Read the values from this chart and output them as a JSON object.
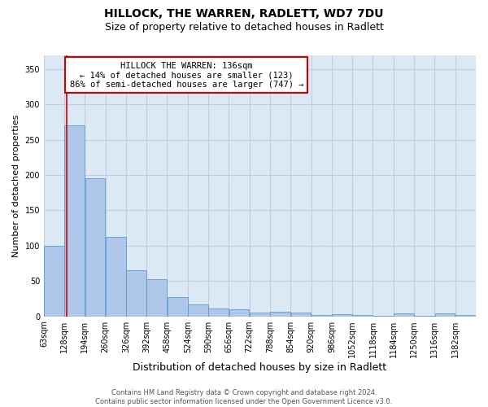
{
  "title": "HILLOCK, THE WARREN, RADLETT, WD7 7DU",
  "subtitle": "Size of property relative to detached houses in Radlett",
  "xlabel": "Distribution of detached houses by size in Radlett",
  "ylabel": "Number of detached properties",
  "bar_color": "#aec6e8",
  "bar_edge_color": "#5b9bd5",
  "background_color": "#ffffff",
  "plot_bg_color": "#dde8f5",
  "grid_color": "#c0cfe0",
  "annotation_box_color": "#cc0000",
  "annotation_text": "HILLOCK THE WARREN: 136sqm\n← 14% of detached houses are smaller (123)\n86% of semi-detached houses are larger (747) →",
  "red_line_x": 136,
  "categories": [
    "63sqm",
    "128sqm",
    "194sqm",
    "260sqm",
    "326sqm",
    "392sqm",
    "458sqm",
    "524sqm",
    "590sqm",
    "656sqm",
    "722sqm",
    "788sqm",
    "854sqm",
    "920sqm",
    "986sqm",
    "1052sqm",
    "1118sqm",
    "1184sqm",
    "1250sqm",
    "1316sqm",
    "1382sqm"
  ],
  "bin_edges": [
    63,
    128,
    194,
    260,
    326,
    392,
    458,
    524,
    590,
    656,
    722,
    788,
    854,
    920,
    986,
    1052,
    1118,
    1184,
    1250,
    1316,
    1382,
    1448
  ],
  "values": [
    100,
    270,
    195,
    113,
    65,
    53,
    27,
    17,
    11,
    10,
    5,
    6,
    5,
    2,
    3,
    2,
    1,
    4,
    1,
    4,
    2
  ],
  "ylim": [
    0,
    370
  ],
  "yticks": [
    0,
    50,
    100,
    150,
    200,
    250,
    300,
    350
  ],
  "footnote": "Contains HM Land Registry data © Crown copyright and database right 2024.\nContains public sector information licensed under the Open Government Licence v3.0.",
  "title_fontsize": 10,
  "subtitle_fontsize": 9,
  "xlabel_fontsize": 9,
  "ylabel_fontsize": 8,
  "tick_fontsize": 7,
  "annotation_fontsize": 7.5,
  "footnote_fontsize": 6
}
